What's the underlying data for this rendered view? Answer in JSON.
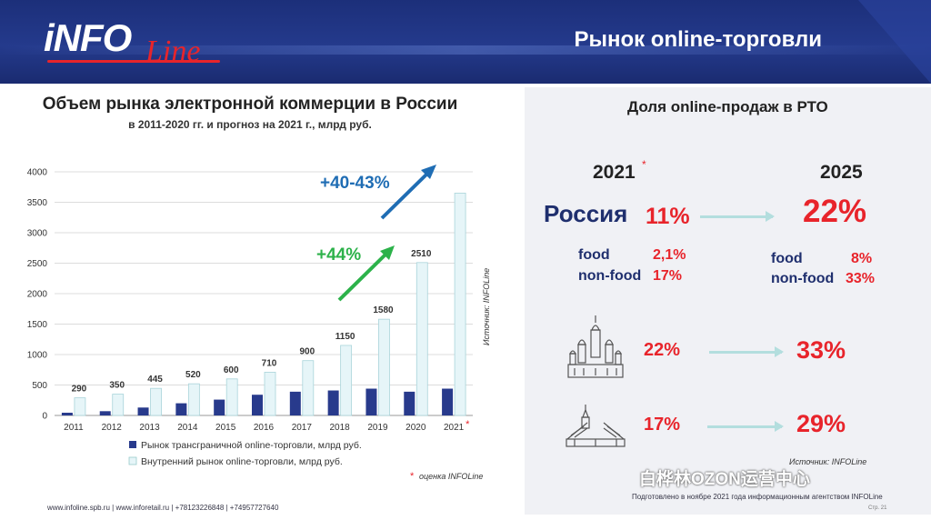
{
  "header": {
    "logo_info": "iNFO",
    "logo_line": "Line",
    "title": "Рынок online-торговли"
  },
  "left_panel": {
    "title": "Объем рынка электронной коммерции в России",
    "subtitle": "в 2011-2020 гг. и прогноз на 2021 г., млрд руб.",
    "growth_1": "+44%",
    "growth_2": "+40-43%",
    "source": "Источник: INFOLine",
    "estimate_note": "оценка INFOLine",
    "estimate_star": "*"
  },
  "chart_data": {
    "type": "bar",
    "categories": [
      "2011",
      "2012",
      "2013",
      "2014",
      "2015",
      "2016",
      "2017",
      "2018",
      "2019",
      "2020",
      "2021"
    ],
    "category_star": "*",
    "series": [
      {
        "name": "Рынок трансграничной online-торговли, млрд руб.",
        "values": [
          45,
          70,
          130,
          200,
          260,
          340,
          390,
          410,
          440,
          390,
          440
        ],
        "color": "#283a8c"
      },
      {
        "name": "Внутренний рынок online-торговли, млрд руб.",
        "values": [
          290,
          350,
          445,
          520,
          600,
          710,
          900,
          1150,
          1580,
          2510,
          3650
        ],
        "labels": [
          "290",
          "350",
          "445",
          "520",
          "600",
          "710",
          "900",
          "1150",
          "1580",
          "2510",
          ""
        ],
        "color": "#e6f5f8"
      }
    ],
    "yticks": [
      "0",
      "500",
      "1000",
      "1500",
      "2000",
      "2500",
      "3000",
      "3500",
      "4000"
    ],
    "ylim": [
      0,
      4000
    ],
    "grid": true,
    "legend_position": "bottom"
  },
  "right_panel": {
    "title": "Доля online-продаж в РТО",
    "year_from": "2021",
    "year_from_star": "*",
    "year_to": "2025",
    "russia_label": "Россия",
    "russia_from": "11%",
    "russia_to": "22%",
    "food_label": "food",
    "nonfood_label": "non-food",
    "food_from": "2,1%",
    "nonfood_from": "17%",
    "food_to": "8%",
    "nonfood_to": "33%",
    "moscow_from": "22%",
    "moscow_to": "33%",
    "spb_from": "17%",
    "spb_to": "29%",
    "source": "Источник: INFOLine"
  },
  "footer": {
    "left": "www.infoline.spb.ru | www.inforetail.ru | +78123226848 | +74957727640",
    "right": "Подготовлено в ноябре 2021 года информационным агентством INFOLine",
    "page": "Стр. 21"
  },
  "watermark": "白桦林OZON运营中心",
  "colors": {
    "header_navy": "#1c2f7a",
    "accent_red": "#e8242b",
    "arrow_blue": "#1f6db4",
    "arrow_green": "#2cb24a"
  }
}
